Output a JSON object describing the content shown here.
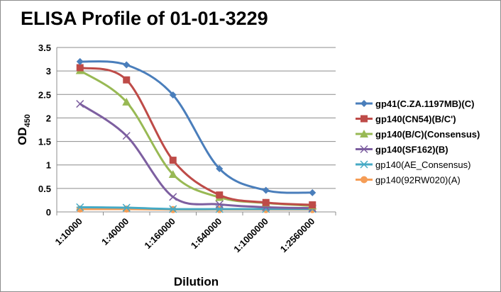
{
  "chart_data": {
    "type": "line",
    "title": "ELISA Profile of 01-01-3229",
    "xlabel": "Dilution",
    "ylabel": "OD",
    "ylabel_sub": "450",
    "ylim": [
      0,
      3.5
    ],
    "y_ticks": [
      "0",
      "0.5",
      "1",
      "1.5",
      "2",
      "2.5",
      "3",
      "3.5"
    ],
    "grid": "horizontal",
    "legend_position": "right",
    "categories": [
      "1:10000",
      "1:40000",
      "1:160000",
      "1:640000",
      "1:1000000",
      "1:2560000"
    ],
    "series": [
      {
        "name": "gp41(C.ZA.1197MB)(C)",
        "color": "#4a7ebb",
        "marker": "diamond",
        "bold": true,
        "values": [
          3.2,
          3.13,
          2.49,
          0.92,
          0.46,
          0.41
        ]
      },
      {
        "name": "gp140(CN54)(B/C')",
        "color": "#be4b48",
        "marker": "square",
        "bold": true,
        "values": [
          3.07,
          2.81,
          1.1,
          0.36,
          0.2,
          0.15
        ]
      },
      {
        "name": "gp140(B/C)(Consensus)",
        "color": "#98b954",
        "marker": "triangle",
        "bold": true,
        "values": [
          3.01,
          2.34,
          0.8,
          0.31,
          0.19,
          0.13
        ]
      },
      {
        "name": "gp140(SF162)(B)",
        "color": "#7d5fa0",
        "marker": "x",
        "bold": true,
        "values": [
          2.3,
          1.62,
          0.32,
          0.16,
          0.1,
          0.08
        ]
      },
      {
        "name": "gp140(AE_Consensus)",
        "color": "#46aac5",
        "marker": "asterisk",
        "bold": false,
        "values": [
          0.1,
          0.09,
          0.06,
          0.06,
          0.06,
          0.06
        ]
      },
      {
        "name": "gp140(92RW020)(A)",
        "color": "#f59d56",
        "marker": "circle",
        "bold": false,
        "values": [
          0.06,
          0.06,
          0.05,
          0.05,
          0.05,
          0.05
        ]
      }
    ]
  }
}
